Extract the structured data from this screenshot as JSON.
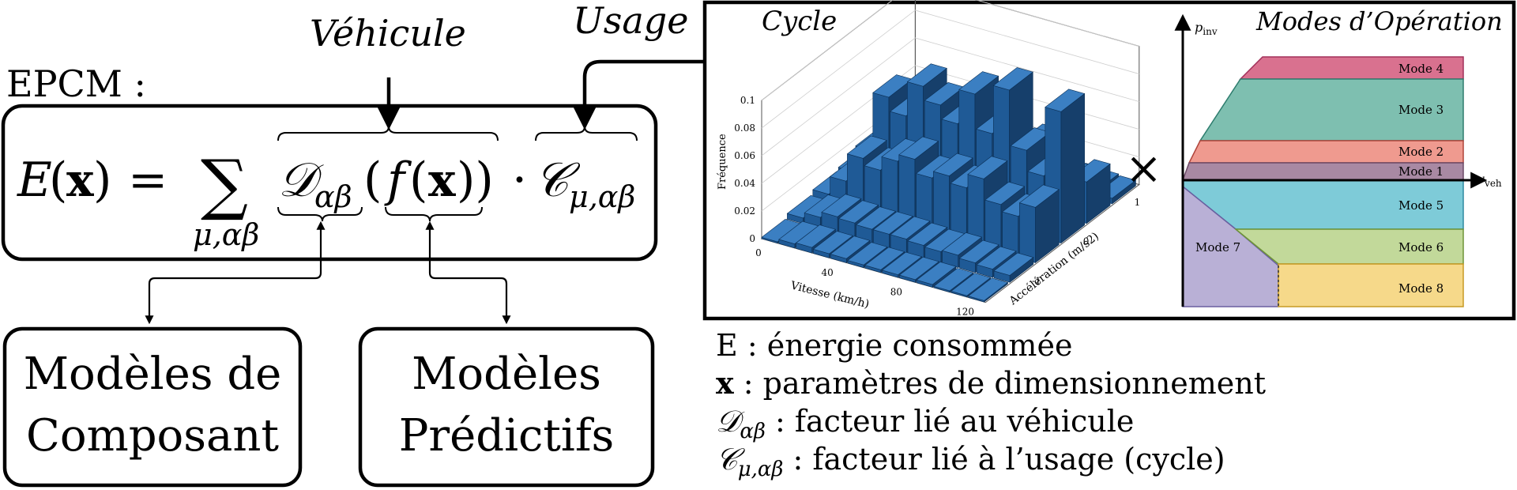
{
  "labels": {
    "epcm": "EPCM :",
    "vehicule": "Véhicule",
    "usage": "Usage",
    "times": "×"
  },
  "equation": {
    "lhs": "E(x)",
    "lhs_e": "E",
    "lhs_x": "x",
    "equals": "=",
    "sum": "∑",
    "sum_sub": "μ,αβ",
    "d": "𝒟",
    "d_sub": "αβ",
    "f_open": "(",
    "f": "f",
    "f_x": "x",
    "f_close": "))",
    "dot": "·",
    "c": "𝒞",
    "c_sub": "μ,αβ"
  },
  "boxes": {
    "composant": [
      "Modèles de",
      "Composant"
    ],
    "predictifs": [
      "Modèles",
      "Prédictifs"
    ]
  },
  "legend": [
    {
      "sym": "E",
      "text": " : énergie consommée"
    },
    {
      "sym": "x",
      "text": " : paramètres de dimensionnement"
    },
    {
      "sym": "𝒟",
      "sub": "αβ",
      "text": " : facteur lié au véhicule"
    },
    {
      "sym": "𝒞",
      "sub": "μ,αβ",
      "text": " : facteur lié à l’usage (cycle)"
    }
  ],
  "chart_data": {
    "type": "bar",
    "title": "Cycle",
    "zlabel": "Fréquence",
    "xlabel": "Vitesse (km/h)",
    "ylabel": "Accélération (m/s2)",
    "z_ticks": [
      "0",
      "0.02",
      "0.04",
      "0.06",
      "0.08",
      "0.1"
    ],
    "x_ticks": [
      "0",
      "40",
      "80",
      "120"
    ],
    "y_ticks": [
      "-1",
      "0",
      "1"
    ],
    "zlim": [
      0,
      0.1
    ],
    "x_bins": [
      0,
      10,
      20,
      30,
      40,
      50,
      60,
      70,
      80,
      90,
      100,
      110,
      120,
      130
    ],
    "acc_bins": [
      -1.5,
      -1,
      -0.5,
      0,
      0.5,
      1,
      1.5
    ],
    "values": [
      [
        0.001,
        0.004,
        0.007,
        0.009,
        0.008,
        0.006,
        0.002
      ],
      [
        0.003,
        0.008,
        0.02,
        0.028,
        0.02,
        0.009,
        0.002
      ],
      [
        0.004,
        0.012,
        0.04,
        0.07,
        0.035,
        0.012,
        0.003
      ],
      [
        0.003,
        0.011,
        0.035,
        0.06,
        0.03,
        0.01,
        0.002
      ],
      [
        0.003,
        0.01,
        0.045,
        0.085,
        0.04,
        0.011,
        0.002
      ],
      [
        0.002,
        0.01,
        0.05,
        0.075,
        0.045,
        0.01,
        0.002
      ],
      [
        0.002,
        0.01,
        0.04,
        0.065,
        0.042,
        0.009,
        0.002
      ],
      [
        0.002,
        0.009,
        0.045,
        0.09,
        0.04,
        0.008,
        0.001
      ],
      [
        0.002,
        0.008,
        0.04,
        0.065,
        0.035,
        0.008,
        0.001
      ],
      [
        0.002,
        0.009,
        0.05,
        0.1,
        0.045,
        0.009,
        0.001
      ],
      [
        0.001,
        0.007,
        0.035,
        0.06,
        0.03,
        0.006,
        0.001
      ],
      [
        0.001,
        0.006,
        0.03,
        0.045,
        0.025,
        0.005,
        0.001
      ],
      [
        0.001,
        0.005,
        0.04,
        0.095,
        0.03,
        0.004,
        0.001
      ]
    ]
  },
  "modes": {
    "title": "Modes d’Opération",
    "y_axis": "p",
    "y_axis_sub": "inv",
    "x_axis": "v",
    "x_axis_sub": "veh",
    "items": [
      {
        "label": "Mode 4",
        "color": "#d9718f"
      },
      {
        "label": "Mode 3",
        "color": "#7ebfb0"
      },
      {
        "label": "Mode 2",
        "color": "#ef9a8f"
      },
      {
        "label": "Mode 1",
        "color": "#a889a3"
      },
      {
        "label": "Mode 5",
        "color": "#7ecbd8"
      },
      {
        "label": "Mode 6",
        "color": "#c2d99a"
      },
      {
        "label": "Mode 7",
        "color": "#b9b0d6"
      },
      {
        "label": "Mode 8",
        "color": "#f6d98a"
      }
    ]
  },
  "colors": {
    "bar": "#1f5a96",
    "ink": "#000000"
  }
}
